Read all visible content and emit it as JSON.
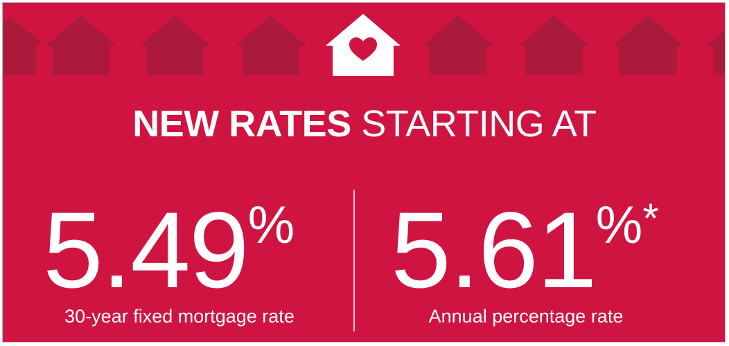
{
  "colors": {
    "background": "#cf1442",
    "house_silhouette": "#ab1a3b",
    "house_featured": "#ffffff",
    "heart": "#cf1442",
    "text": "#ffffff"
  },
  "icons": {
    "decorative": "house-silhouette-icon",
    "featured": "house-heart-icon"
  },
  "headline": {
    "bold_text": "NEW RATES",
    "light_text": "STARTING AT"
  },
  "rates": [
    {
      "value": "5.49",
      "symbol": "%",
      "footnote_mark": "",
      "caption": "30-year fixed mortgage rate"
    },
    {
      "value": "5.61",
      "symbol": "%",
      "footnote_mark": "*",
      "caption": "Annual percentage rate"
    }
  ]
}
